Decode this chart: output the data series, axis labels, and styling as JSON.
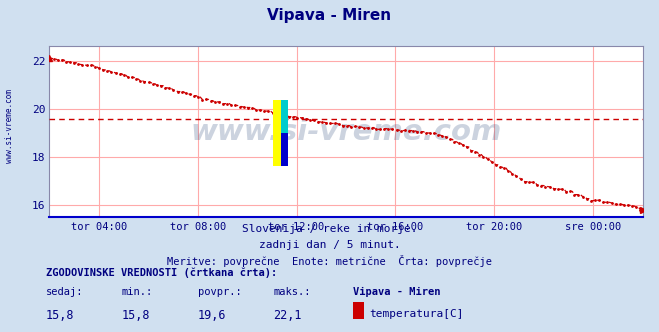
{
  "title": "Vipava - Miren",
  "title_color": "#000080",
  "bg_color": "#d0e0f0",
  "plot_bg_color": "#ffffff",
  "x_labels": [
    "tor 04:00",
    "tor 08:00",
    "tor 12:00",
    "tor 16:00",
    "tor 20:00",
    "sre 00:00"
  ],
  "y_ticks": [
    16,
    18,
    20,
    22
  ],
  "ylim": [
    15.5,
    22.6
  ],
  "xlim": [
    0,
    24
  ],
  "grid_color": "#ffaaaa",
  "line_color": "#cc0000",
  "avg_value": 19.6,
  "watermark": "www.si-vreme.com",
  "watermark_color": "#1a3a6e",
  "watermark_alpha": 0.22,
  "subtitle1": "Slovenija / reke in morje.",
  "subtitle2": "zadnji dan / 5 minut.",
  "subtitle3": "Meritve: povprečne  Enote: metrične  Črta: povprečje",
  "subtitle_color": "#000080",
  "bottom_label1": "ZGODOVINSKE VREDNOSTI (črtkana črta):",
  "bottom_col_headers": [
    "sedaj:",
    "min.:",
    "povpr.:",
    "maks.:",
    "Vipava - Miren"
  ],
  "bottom_col_values": [
    "15,8",
    "15,8",
    "19,6",
    "22,1",
    "temperatura[C]"
  ],
  "bottom_color": "#000080",
  "legend_box_color": "#cc0000",
  "left_label": "www.si-vreme.com",
  "left_label_color": "#000080",
  "x_tick_hours": [
    2,
    6,
    10,
    14,
    18,
    22
  ],
  "breakpoints_x": [
    0,
    20,
    40,
    60,
    80,
    100,
    115,
    130,
    145,
    155,
    165,
    175,
    185,
    190,
    200,
    210,
    220,
    230,
    240,
    250,
    260,
    270,
    280,
    287
  ],
  "breakpoints_y": [
    22.1,
    21.8,
    21.3,
    20.8,
    20.3,
    20.0,
    19.7,
    19.5,
    19.3,
    19.2,
    19.15,
    19.1,
    19.0,
    18.9,
    18.5,
    18.0,
    17.5,
    17.0,
    16.8,
    16.6,
    16.3,
    16.1,
    16.0,
    15.8
  ]
}
